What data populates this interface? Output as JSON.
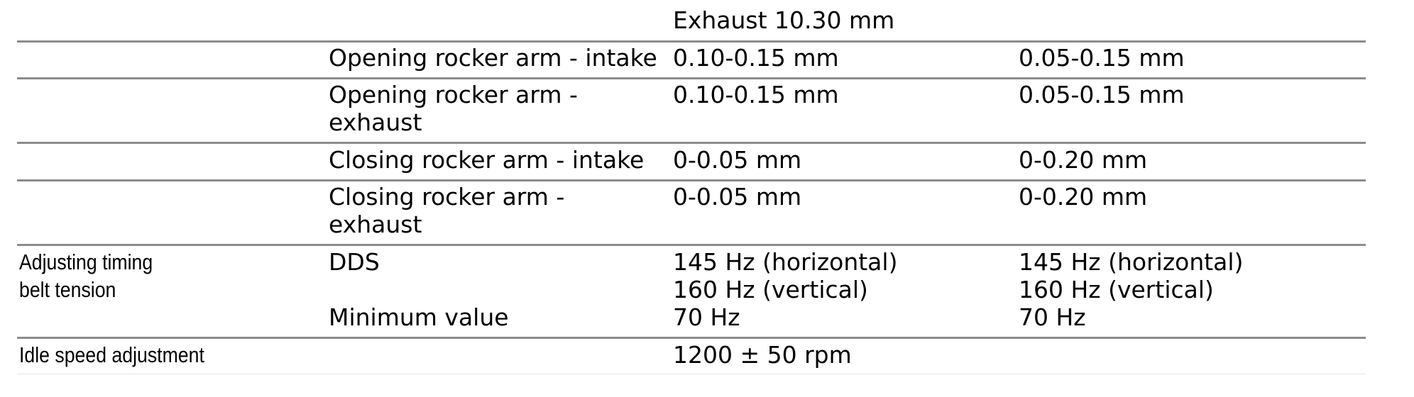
{
  "table": {
    "row_exhaust_top": {
      "value": "Exhaust 10.30 mm"
    },
    "rows": [
      {
        "param": "Opening rocker arm - intake",
        "value_a": "0.10-0.15 mm",
        "value_b": "0.05-0.15 mm"
      },
      {
        "param_line1": "Opening rocker arm -",
        "param_line2": "exhaust",
        "value_a": "0.10-0.15 mm",
        "value_b": "0.05-0.15 mm"
      },
      {
        "param": "Closing rocker arm - intake",
        "value_a": "0-0.05 mm",
        "value_b": "0-0.20 mm"
      },
      {
        "param_line1": "Closing rocker arm -",
        "param_line2": "exhaust",
        "value_a": "0-0.05 mm",
        "value_b": "0-0.20 mm"
      }
    ],
    "timing_belt": {
      "label_line1": "Adjusting timing",
      "label_line2": "belt tension",
      "dds_label": "DDS",
      "dds_a_line1": "145 Hz (horizontal)",
      "dds_a_line2": "160 Hz (vertical)",
      "dds_b_line1": "145 Hz (horizontal)",
      "dds_b_line2": "160 Hz (vertical)",
      "min_label": "Minimum value",
      "min_a": "70 Hz",
      "min_b": "70 Hz"
    },
    "idle_speed": {
      "label": "Idle speed adjustment",
      "value": "1200 ± 50 rpm"
    }
  }
}
